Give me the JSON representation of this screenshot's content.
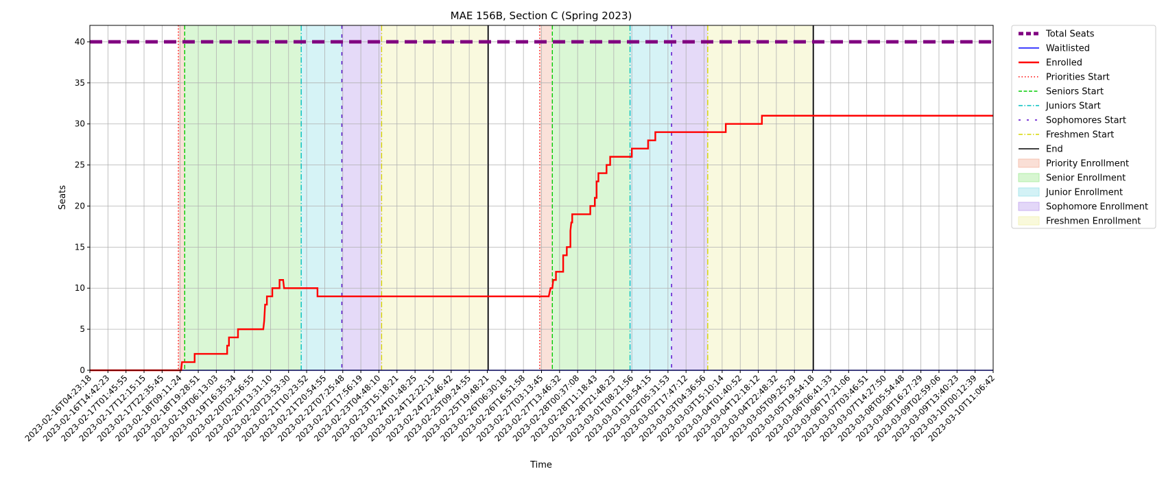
{
  "chart_data": {
    "type": "line",
    "title": "MAE 156B, Section C (Spring 2023)",
    "xlabel": "Time",
    "ylabel": "Seats",
    "ylim": [
      0,
      42
    ],
    "y_ticks": [
      0,
      5,
      10,
      15,
      20,
      25,
      30,
      35,
      40
    ],
    "grid": true,
    "legend_position": "outside-right",
    "x_tick_labels": [
      "2023-02-16T04:23:18",
      "2023-02-16T14:42:23",
      "2023-02-17T01:45:55",
      "2023-02-17T12:15:15",
      "2023-02-17T22:35:45",
      "2023-02-18T09:11:24",
      "2023-02-18T19:28:51",
      "2023-02-19T06:13:03",
      "2023-02-19T16:35:34",
      "2023-02-20T02:56:55",
      "2023-02-20T13:31:10",
      "2023-02-20T23:53:30",
      "2023-02-21T10:23:52",
      "2023-02-21T20:54:55",
      "2023-02-22T07:25:48",
      "2023-02-22T17:56:19",
      "2023-02-23T04:48:10",
      "2023-02-23T15:18:21",
      "2023-02-24T01:48:25",
      "2023-02-24T12:22:15",
      "2023-02-24T22:46:42",
      "2023-02-25T09:24:55",
      "2023-02-25T19:48:21",
      "2023-02-26T06:30:18",
      "2023-02-26T16:51:58",
      "2023-02-27T03:13:45",
      "2023-02-27T13:46:32",
      "2023-02-28T00:37:08",
      "2023-02-28T11:18:43",
      "2023-02-28T21:48:23",
      "2023-03-01T08:21:56",
      "2023-03-01T18:54:15",
      "2023-03-02T05:31:53",
      "2023-03-02T17:47:12",
      "2023-03-03T04:36:56",
      "2023-03-03T15:10:14",
      "2023-03-04T01:40:52",
      "2023-03-04T12:18:12",
      "2023-03-04T22:48:32",
      "2023-03-05T09:25:29",
      "2023-03-05T19:54:18",
      "2023-03-06T06:41:33",
      "2023-03-06T17:21:06",
      "2023-03-07T03:46:51",
      "2023-03-07T14:27:50",
      "2023-03-08T05:54:48",
      "2023-03-08T16:27:29",
      "2023-03-09T02:59:06",
      "2023-03-09T13:40:23",
      "2023-03-10T00:12:39",
      "2023-03-10T11:06:42"
    ],
    "x_tick_index_range": [
      0,
      50
    ],
    "total_seats": 40,
    "enrolled": [
      [
        0,
        0
      ],
      [
        5.05,
        0
      ],
      [
        5.1,
        1
      ],
      [
        5.8,
        1
      ],
      [
        5.8,
        2
      ],
      [
        7.6,
        2
      ],
      [
        7.6,
        3
      ],
      [
        7.7,
        3
      ],
      [
        7.7,
        4
      ],
      [
        8.2,
        4
      ],
      [
        8.2,
        5
      ],
      [
        9.6,
        5
      ],
      [
        9.65,
        6
      ],
      [
        9.7,
        8
      ],
      [
        9.8,
        8
      ],
      [
        9.8,
        9
      ],
      [
        10.1,
        9
      ],
      [
        10.1,
        10
      ],
      [
        10.5,
        10
      ],
      [
        10.5,
        11
      ],
      [
        10.7,
        11
      ],
      [
        10.75,
        10
      ],
      [
        12.6,
        10
      ],
      [
        12.6,
        9
      ],
      [
        25.4,
        9
      ],
      [
        25.5,
        10
      ],
      [
        25.6,
        10
      ],
      [
        25.65,
        11
      ],
      [
        25.8,
        11
      ],
      [
        25.8,
        12
      ],
      [
        26.2,
        12
      ],
      [
        26.2,
        14
      ],
      [
        26.4,
        14
      ],
      [
        26.4,
        15
      ],
      [
        26.6,
        15
      ],
      [
        26.6,
        17
      ],
      [
        26.65,
        18
      ],
      [
        26.7,
        18
      ],
      [
        26.7,
        19
      ],
      [
        27.7,
        19
      ],
      [
        27.7,
        20
      ],
      [
        27.95,
        20
      ],
      [
        27.95,
        21
      ],
      [
        28.05,
        21
      ],
      [
        28.05,
        23
      ],
      [
        28.15,
        23
      ],
      [
        28.15,
        24
      ],
      [
        28.6,
        24
      ],
      [
        28.6,
        25
      ],
      [
        28.8,
        25
      ],
      [
        28.8,
        26
      ],
      [
        30.0,
        26
      ],
      [
        30.0,
        27
      ],
      [
        30.9,
        27
      ],
      [
        30.9,
        28
      ],
      [
        31.3,
        28
      ],
      [
        31.3,
        29
      ],
      [
        35.2,
        29
      ],
      [
        35.2,
        30
      ],
      [
        37.2,
        30
      ],
      [
        37.2,
        31
      ],
      [
        50,
        31
      ]
    ],
    "waitlisted": [
      [
        0,
        0
      ],
      [
        50,
        0
      ]
    ],
    "phase_lines": [
      {
        "name": "Priorities Start",
        "x": 4.9
      },
      {
        "name": "Seniors Start",
        "x": 5.25
      },
      {
        "name": "Juniors Start",
        "x": 11.7
      },
      {
        "name": "Sophomores Start",
        "x": 13.95
      },
      {
        "name": "Freshmen Start",
        "x": 16.15
      },
      {
        "name": "End",
        "x": 22.05
      },
      {
        "name": "Priorities Start",
        "x": 24.9
      },
      {
        "name": "Seniors Start",
        "x": 25.6
      },
      {
        "name": "Juniors Start",
        "x": 29.9
      },
      {
        "name": "Sophomores Start",
        "x": 32.2
      },
      {
        "name": "Freshmen Start",
        "x": 34.2
      },
      {
        "name": "End",
        "x": 40.05
      }
    ],
    "phase_spans": [
      {
        "name": "Priority Enrollment",
        "x0": 4.9,
        "x1": 5.25
      },
      {
        "name": "Senior Enrollment",
        "x0": 5.25,
        "x1": 11.7
      },
      {
        "name": "Junior Enrollment",
        "x0": 11.7,
        "x1": 13.95
      },
      {
        "name": "Sophomore Enrollment",
        "x0": 13.95,
        "x1": 16.15
      },
      {
        "name": "Freshmen Enrollment",
        "x0": 16.15,
        "x1": 22.05
      },
      {
        "name": "Priority Enrollment",
        "x0": 24.9,
        "x1": 25.6
      },
      {
        "name": "Senior Enrollment",
        "x0": 25.6,
        "x1": 29.9
      },
      {
        "name": "Junior Enrollment",
        "x0": 29.9,
        "x1": 32.2
      },
      {
        "name": "Sophomore Enrollment",
        "x0": 32.2,
        "x1": 34.2
      },
      {
        "name": "Freshmen Enrollment",
        "x0": 34.2,
        "x1": 40.05
      }
    ],
    "legend": [
      {
        "label": "Total Seats",
        "kind": "line",
        "color": "#800080",
        "style": "thickdash"
      },
      {
        "label": "Waitlisted",
        "kind": "line",
        "color": "#0000ff",
        "style": "solid"
      },
      {
        "label": "Enrolled",
        "kind": "line",
        "color": "#ff0000",
        "style": "solidthick"
      },
      {
        "label": "Priorities Start",
        "kind": "line",
        "color": "#ff0000",
        "style": "dotted"
      },
      {
        "label": "Seniors Start",
        "kind": "line",
        "color": "#00cc00",
        "style": "dashed"
      },
      {
        "label": "Juniors Start",
        "kind": "line",
        "color": "#00bfbf",
        "style": "dashdot"
      },
      {
        "label": "Sophomores Start",
        "kind": "line",
        "color": "#5500cc",
        "style": "sparsedash"
      },
      {
        "label": "Freshmen Start",
        "kind": "line",
        "color": "#d6d600",
        "style": "dashdot"
      },
      {
        "label": "End",
        "kind": "line",
        "color": "#000000",
        "style": "solid"
      },
      {
        "label": "Priority Enrollment",
        "kind": "patch",
        "color": "#f4b8a4"
      },
      {
        "label": "Senior Enrollment",
        "kind": "patch",
        "color": "#a6eb9a"
      },
      {
        "label": "Junior Enrollment",
        "kind": "patch",
        "color": "#9ee3ea"
      },
      {
        "label": "Sophomore Enrollment",
        "kind": "patch",
        "color": "#c2a6ef"
      },
      {
        "label": "Freshmen Enrollment",
        "kind": "patch",
        "color": "#f1f1b0"
      }
    ],
    "colors": {
      "total_seats": "#800080",
      "waitlisted": "#0000ff",
      "enrolled": "#ff0000",
      "priority_span": "#f4b8a4",
      "senior_span": "#a6eb9a",
      "junior_span": "#9ee3ea",
      "sophomore_span": "#c2a6ef",
      "freshmen_span": "#f1f1b0"
    }
  }
}
